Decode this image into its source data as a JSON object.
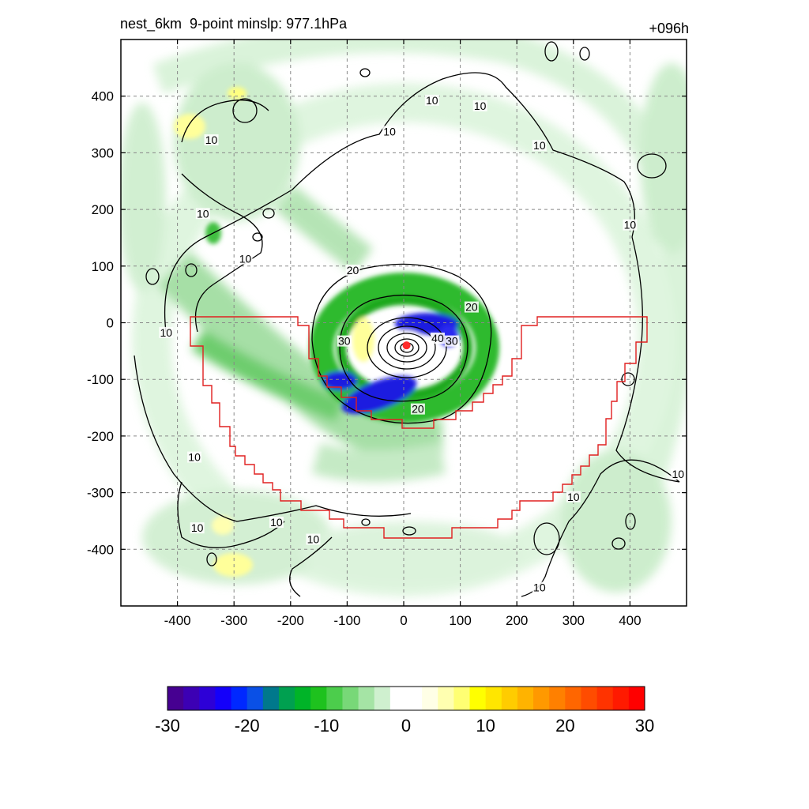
{
  "title_left": "nest_6km  9-point minslp: 977.1hPa",
  "title_right": "+096h",
  "colors": {
    "boundary": "#e02020",
    "contour": "#000000",
    "center_marker": "#ff2a2a",
    "grid": "#888888"
  },
  "chart_data": {
    "type": "heatmap",
    "title": "nest_6km  9-point minslp: 977.1hPa",
    "forecast_hour": "+096h",
    "x_ticks": [
      -400,
      -300,
      -200,
      -100,
      0,
      100,
      200,
      300,
      400
    ],
    "y_ticks": [
      400,
      300,
      200,
      100,
      0,
      -100,
      -200,
      -300,
      -400
    ],
    "xlim": [
      -500,
      500
    ],
    "ylim": [
      -500,
      500
    ],
    "grid": "dashed",
    "center": [
      5,
      -40
    ],
    "contour_levels": [
      10,
      20,
      30,
      40
    ],
    "contour_labels": [
      {
        "text": "10",
        "x": -340,
        "y": 320
      },
      {
        "text": "10",
        "x": -355,
        "y": 190
      },
      {
        "text": "10",
        "x": -280,
        "y": 110
      },
      {
        "text": "10",
        "x": -420,
        "y": -20
      },
      {
        "text": "10",
        "x": -25,
        "y": 335
      },
      {
        "text": "10",
        "x": 50,
        "y": 390
      },
      {
        "text": "10",
        "x": 135,
        "y": 380
      },
      {
        "text": "10",
        "x": 240,
        "y": 310
      },
      {
        "text": "10",
        "x": 400,
        "y": 170
      },
      {
        "text": "10",
        "x": -370,
        "y": -240
      },
      {
        "text": "10",
        "x": -365,
        "y": -365
      },
      {
        "text": "10",
        "x": -225,
        "y": -355
      },
      {
        "text": "10",
        "x": -160,
        "y": -385
      },
      {
        "text": "10",
        "x": 485,
        "y": -270
      },
      {
        "text": "10",
        "x": 300,
        "y": -310
      },
      {
        "text": "10",
        "x": 240,
        "y": -470
      },
      {
        "text": "20",
        "x": -90,
        "y": 90
      },
      {
        "text": "20",
        "x": 120,
        "y": 25
      },
      {
        "text": "20",
        "x": 25,
        "y": -155
      },
      {
        "text": "30",
        "x": -105,
        "y": -35
      },
      {
        "text": "30",
        "x": 85,
        "y": -35
      },
      {
        "text": "40",
        "x": 60,
        "y": -30
      }
    ],
    "colorbar": {
      "ticks": [
        -30,
        -20,
        -10,
        0,
        10,
        20,
        30
      ],
      "min": -30,
      "max": 30,
      "step": 2,
      "colors": [
        "#460091",
        "#3c00b4",
        "#2d00d7",
        "#1400fa",
        "#0028ff",
        "#0a50e6",
        "#00788c",
        "#00a050",
        "#00b428",
        "#1ec21e",
        "#4ccd4c",
        "#78d878",
        "#a5e4a5",
        "#cff0cf",
        "#ffffff",
        "#ffffff",
        "#ffffe6",
        "#ffffb0",
        "#ffff73",
        "#ffff00",
        "#ffe600",
        "#ffcc00",
        "#ffb300",
        "#ff9900",
        "#ff8000",
        "#ff6600",
        "#ff4c00",
        "#ff3300",
        "#ff1a00",
        "#ff0000"
      ]
    }
  }
}
